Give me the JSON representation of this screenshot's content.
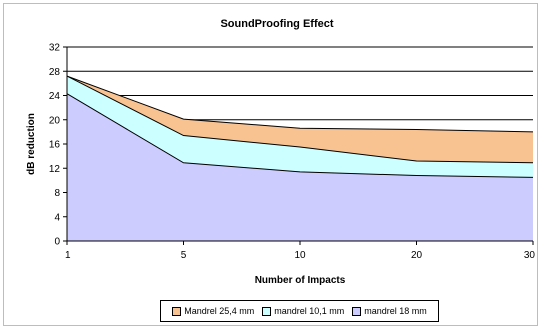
{
  "chart_data": {
    "type": "area",
    "title": "SoundProofing Effect",
    "xlabel": "Number of Impacts",
    "ylabel": "dB reduction",
    "categories": [
      "1",
      "5",
      "10",
      "20",
      "30"
    ],
    "ylim": [
      0,
      32
    ],
    "yticks": [
      "0",
      "4",
      "8",
      "12",
      "16",
      "20",
      "24",
      "28",
      "32"
    ],
    "grid": true,
    "legend_position": "bottom",
    "series": [
      {
        "name": "Mandrel 25,4 mm",
        "values": [
          27.2,
          20.1,
          18.6,
          18.4,
          18.0
        ],
        "color": "#f9c291"
      },
      {
        "name": "mandrel 10,1 mm",
        "values": [
          27.2,
          17.4,
          15.5,
          13.2,
          12.9
        ],
        "color": "#ccffff"
      },
      {
        "name": "mandrel 18 mm",
        "values": [
          24.3,
          12.9,
          11.4,
          10.8,
          10.5
        ],
        "color": "#ccccff"
      }
    ]
  }
}
